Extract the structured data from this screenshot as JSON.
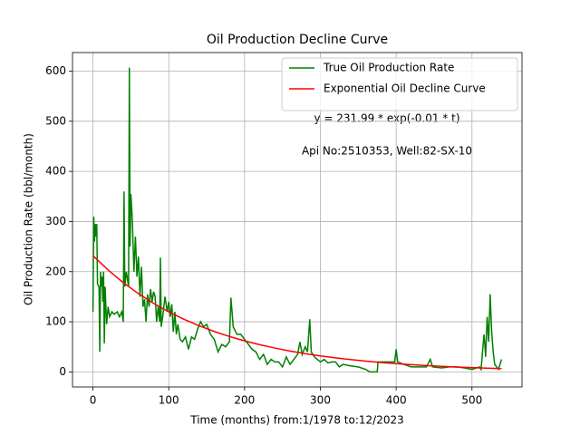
{
  "chart_data": {
    "type": "line",
    "title": "Oil Production Decline Curve",
    "xlabel": "Time (months) from:1/1978 to:12/2023",
    "ylabel": "Oil Production Rate (bbl/month)",
    "annotations": [
      "y = 231.99 * exp(-0.01 * t)",
      "Api No:2510353, Well:82-SX-10"
    ],
    "xlim": [
      -27,
      566
    ],
    "ylim": [
      -30,
      637
    ],
    "xticks": [
      0,
      100,
      200,
      300,
      400,
      500
    ],
    "yticks": [
      0,
      100,
      200,
      300,
      400,
      500,
      600
    ],
    "grid": true,
    "legend": "upper right",
    "series": [
      {
        "name": "True Oil Production Rate",
        "color": "#008000",
        "x": [
          0,
          1,
          2,
          3,
          4,
          5,
          6,
          8,
          9,
          10,
          11,
          12,
          13,
          14,
          15,
          16,
          18,
          20,
          22,
          25,
          28,
          32,
          35,
          38,
          40,
          41,
          42,
          44,
          46,
          47,
          48,
          49,
          50,
          51,
          52,
          54,
          56,
          58,
          60,
          62,
          64,
          66,
          68,
          70,
          72,
          74,
          76,
          78,
          80,
          82,
          84,
          86,
          88,
          89,
          90,
          92,
          95,
          98,
          100,
          102,
          104,
          106,
          108,
          110,
          112,
          115,
          118,
          122,
          126,
          130,
          134,
          138,
          142,
          146,
          150,
          155,
          160,
          165,
          170,
          175,
          180,
          182,
          185,
          190,
          195,
          200,
          205,
          210,
          215,
          220,
          225,
          230,
          235,
          240,
          245,
          250,
          255,
          260,
          265,
          270,
          273,
          276,
          280,
          283,
          286,
          288,
          292,
          300,
          305,
          310,
          315,
          320,
          325,
          330,
          340,
          350,
          360,
          365,
          375,
          376,
          390,
          398,
          400,
          402,
          410,
          420,
          430,
          440,
          445,
          448,
          460,
          470,
          480,
          490,
          500,
          510,
          512,
          515,
          516,
          518,
          520,
          522,
          524,
          526,
          528,
          530,
          535,
          539
        ],
        "values": [
          120,
          310,
          260,
          295,
          270,
          295,
          175,
          170,
          40,
          200,
          170,
          190,
          140,
          200,
          57,
          170,
          95,
          130,
          110,
          120,
          115,
          120,
          110,
          120,
          100,
          360,
          170,
          200,
          180,
          170,
          607,
          250,
          355,
          330,
          300,
          200,
          270,
          190,
          230,
          150,
          210,
          130,
          145,
          100,
          155,
          130,
          165,
          140,
          160,
          150,
          100,
          130,
          100,
          228,
          90,
          110,
          150,
          120,
          140,
          110,
          135,
          80,
          120,
          75,
          95,
          65,
          60,
          70,
          45,
          70,
          65,
          85,
          100,
          90,
          95,
          75,
          65,
          40,
          55,
          50,
          60,
          148,
          90,
          75,
          75,
          65,
          55,
          45,
          40,
          25,
          35,
          15,
          25,
          20,
          20,
          10,
          30,
          15,
          25,
          35,
          60,
          35,
          50,
          40,
          105,
          40,
          30,
          20,
          25,
          18,
          20,
          20,
          10,
          15,
          12,
          10,
          5,
          0,
          0,
          20,
          20,
          20,
          45,
          20,
          15,
          10,
          10,
          10,
          25,
          10,
          8,
          10,
          10,
          8,
          5,
          10,
          5,
          60,
          75,
          30,
          110,
          60,
          155,
          80,
          40,
          15,
          5,
          25
        ]
      },
      {
        "name": "Exponential Oil Decline Curve",
        "color": "#ff0000",
        "x": [
          0,
          20,
          40,
          60,
          80,
          100,
          120,
          140,
          160,
          180,
          200,
          220,
          240,
          260,
          280,
          300,
          320,
          340,
          360,
          380,
          400,
          420,
          440,
          460,
          480,
          500,
          520,
          539
        ],
        "values": [
          232.0,
          203.3,
          178.1,
          156.1,
          136.8,
          119.9,
          105.1,
          92.1,
          80.7,
          70.7,
          62.0,
          54.3,
          47.6,
          41.7,
          36.5,
          32.0,
          28.1,
          24.6,
          21.5,
          18.9,
          16.5,
          14.5,
          12.7,
          11.1,
          9.8,
          8.6,
          7.5,
          6.6
        ]
      }
    ]
  }
}
